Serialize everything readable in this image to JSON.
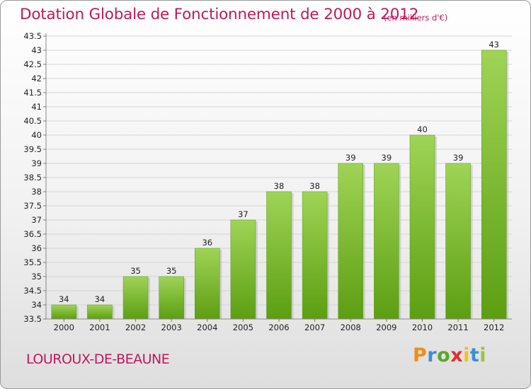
{
  "header": {
    "title": "Dotation Globale de Fonctionnement de 2000 à 2012",
    "unit": "(en milliers d'€)"
  },
  "footer": {
    "commune": "LOUROUX-DE-BEAUNE",
    "logo_text": "Proxiti"
  },
  "colors": {
    "accent": "#c0185a",
    "bar_top": "#9fd456",
    "bar_bottom": "#5c9e12"
  },
  "chart_data": {
    "type": "bar",
    "title": "Dotation Globale de Fonctionnement de 2000 à 2012",
    "subtitle": "(en milliers d'€)",
    "categories": [
      "2000",
      "2001",
      "2002",
      "2003",
      "2004",
      "2005",
      "2006",
      "2007",
      "2008",
      "2009",
      "2010",
      "2011",
      "2012"
    ],
    "values": [
      34,
      34,
      35,
      35,
      36,
      37,
      38,
      38,
      39,
      39,
      40,
      39,
      43
    ],
    "data_labels": [
      "34",
      "34",
      "35",
      "35",
      "36",
      "37",
      "38",
      "38",
      "39",
      "39",
      "40",
      "39",
      "43"
    ],
    "ylim": [
      33.5,
      43.5
    ],
    "yticks": [
      "33.5",
      "34",
      "34.5",
      "35",
      "35.5",
      "36",
      "36.5",
      "37",
      "37.5",
      "38",
      "38.5",
      "39",
      "39.5",
      "40",
      "40.5",
      "41",
      "41.5",
      "42",
      "42.5",
      "43",
      "43.5"
    ],
    "grid": true,
    "legend": "none"
  }
}
